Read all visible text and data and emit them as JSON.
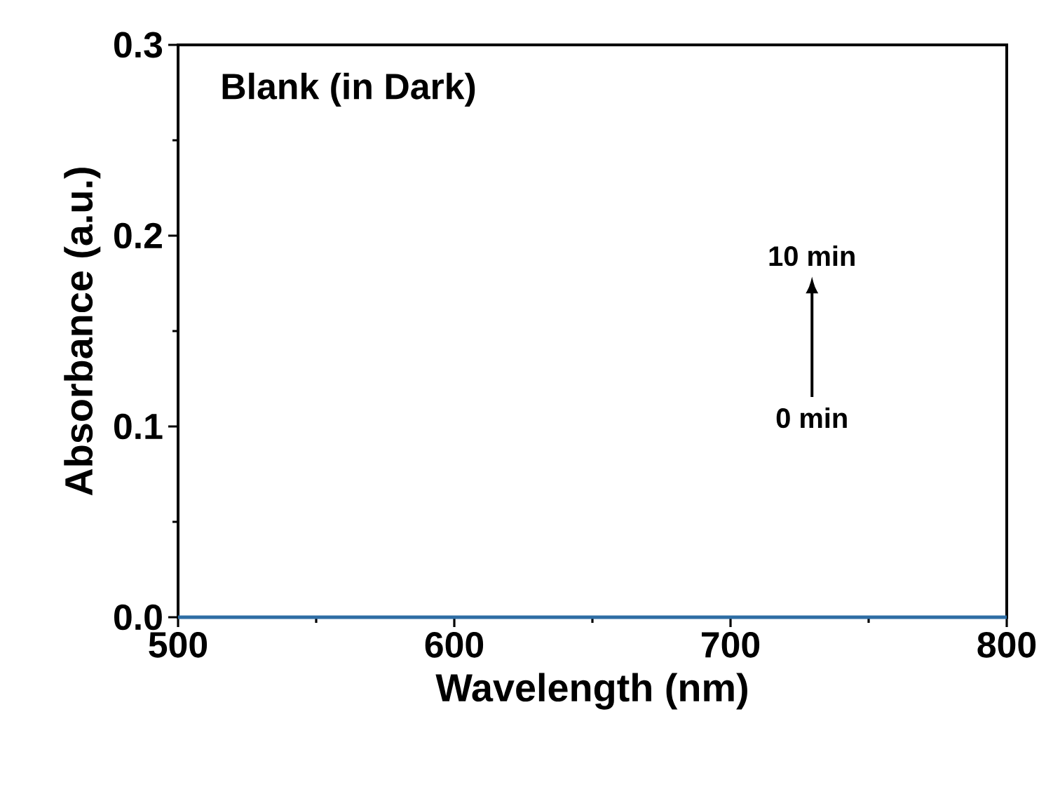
{
  "chart_data": {
    "type": "line",
    "title": "Blank (in Dark)",
    "xlabel": "Wavelength (nm)",
    "ylabel": "Absorbance (a.u.)",
    "xlim": [
      500,
      800
    ],
    "ylim": [
      0,
      0.3
    ],
    "xticks": [
      500,
      600,
      700,
      800
    ],
    "yticks": [
      {
        "value": 0,
        "label": "0.0"
      },
      0.1,
      0.2,
      0.3
    ],
    "annotations": [
      "10 min",
      "0 min"
    ],
    "series": [
      {
        "color": "#2e6da4",
        "x": [
          500,
          800
        ],
        "values": [
          0,
          0
        ]
      }
    ]
  }
}
